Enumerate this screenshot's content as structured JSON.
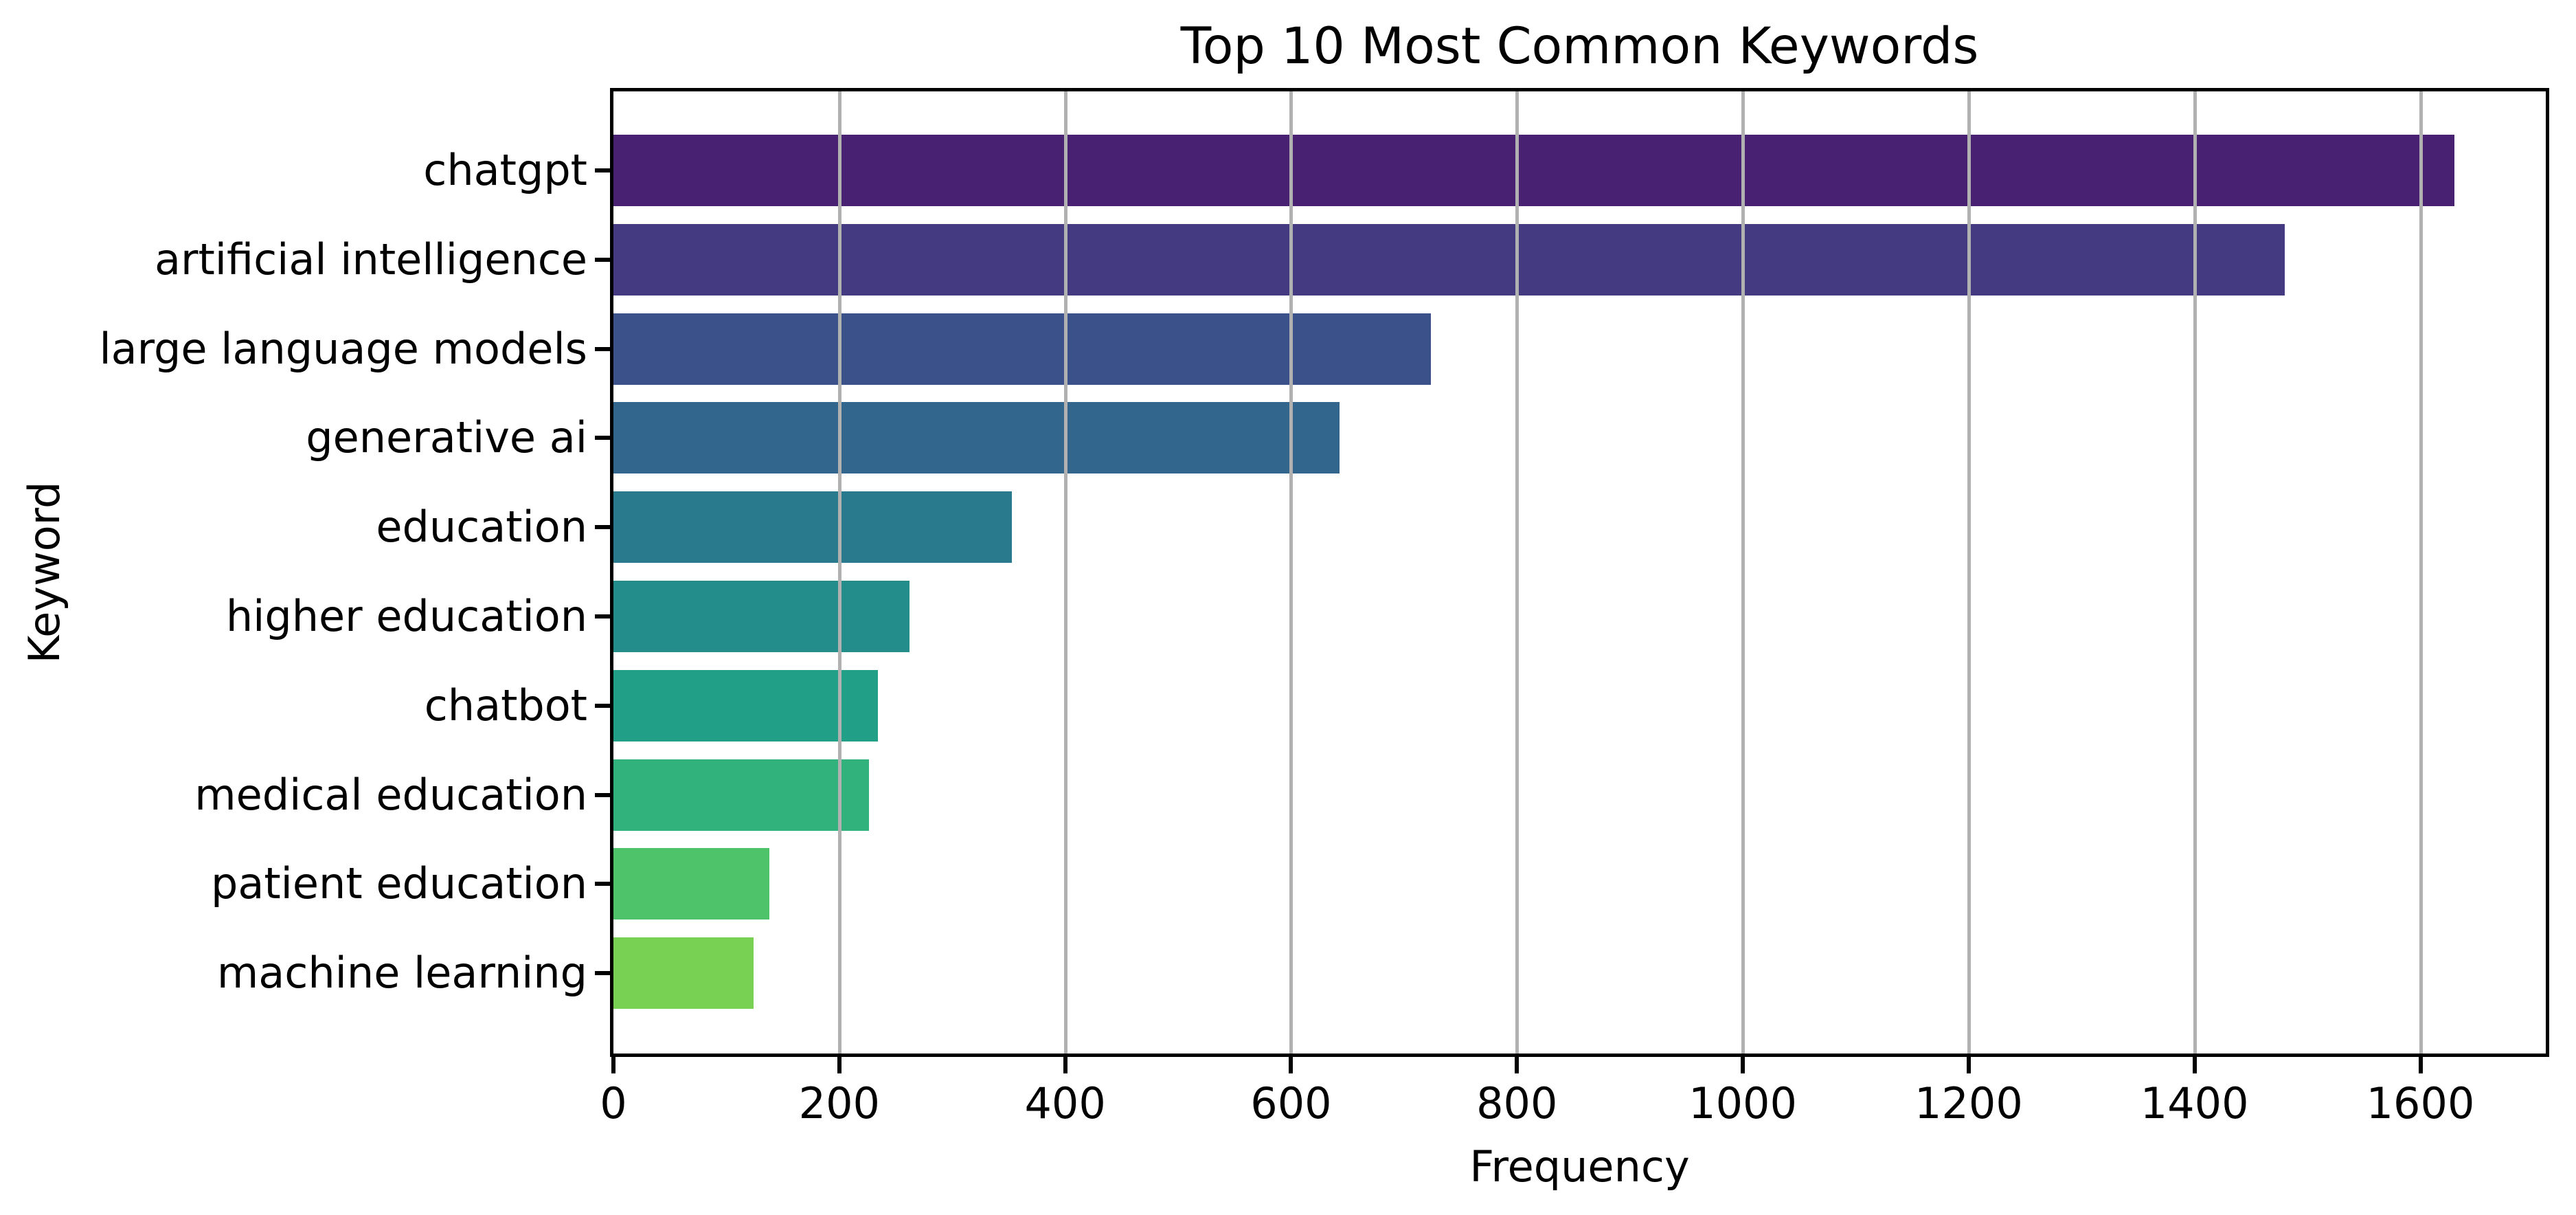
{
  "chart_data": {
    "type": "bar",
    "orientation": "horizontal",
    "title": "Top 10 Most Common Keywords",
    "xlabel": "Frequency",
    "ylabel": "Keyword",
    "categories": [
      "chatgpt",
      "artificial intelligence",
      "large language models",
      "generative ai",
      "education",
      "higher education",
      "chatbot",
      "medical education",
      "patient education",
      "machine learning"
    ],
    "values": [
      1630,
      1480,
      724,
      643,
      353,
      262,
      234,
      226,
      138,
      124
    ],
    "bar_colors": [
      "#482173",
      "#433a82",
      "#3b518a",
      "#32668d",
      "#2a7a8e",
      "#238d8c",
      "#22a087",
      "#31b17c",
      "#4ec36a",
      "#78d152"
    ],
    "xticks": [
      0,
      200,
      400,
      600,
      800,
      1000,
      1200,
      1400,
      1600
    ],
    "xtick_labels": [
      "0",
      "200",
      "400",
      "600",
      "800",
      "1000",
      "1200",
      "1400",
      "1600"
    ],
    "xlim": [
      0,
      1711
    ],
    "grid": {
      "axis": "x",
      "color": "#b1b1b1",
      "above_bars": true
    },
    "legend": "none",
    "plot_background": "#ffffff",
    "spine_color": "#000000",
    "text_color": "#000000"
  }
}
